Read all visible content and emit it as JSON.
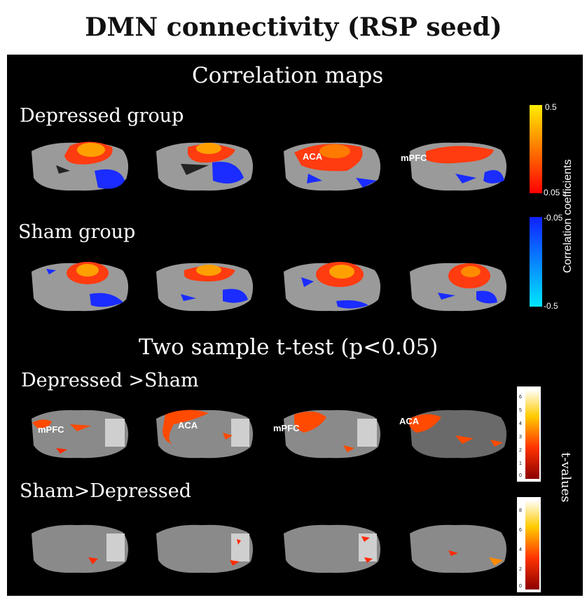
{
  "figure": {
    "title": "DMN connectivity (RSP seed)",
    "sections": {
      "correlation": "Correlation maps",
      "ttest": "Two sample t-test (p<0.05)"
    },
    "groups": {
      "depressed": "Depressed group",
      "sham": "Sham group",
      "dep_gt_sham": "Depressed >Sham",
      "sham_gt_dep": "Sham>Depressed"
    },
    "annotations": {
      "row1": [
        "ACA",
        "mPFC"
      ],
      "row3": [
        "mPFC",
        "ACA",
        "mPFC",
        "ACA"
      ]
    },
    "correlation_colorbar": {
      "label": "Correlation coefficients",
      "pos_max": "0.5",
      "pos_min": "0.05",
      "neg_min": "-0.05",
      "neg_max": "-0.5",
      "pos_colors": [
        "#ff0000",
        "#ffee00"
      ],
      "neg_colors": [
        "#1020ff",
        "#00e8ff"
      ]
    },
    "tvalue_colorbar": {
      "label": "t-values",
      "bar1_ticks": [
        "6",
        "5",
        "4",
        "3",
        "2",
        "1",
        "0"
      ],
      "bar2_ticks": [
        "8",
        "6",
        "4",
        "2",
        "0"
      ],
      "colors": [
        "#8b0000",
        "#ff3300",
        "#ffcc00",
        "#ffffff"
      ]
    }
  }
}
